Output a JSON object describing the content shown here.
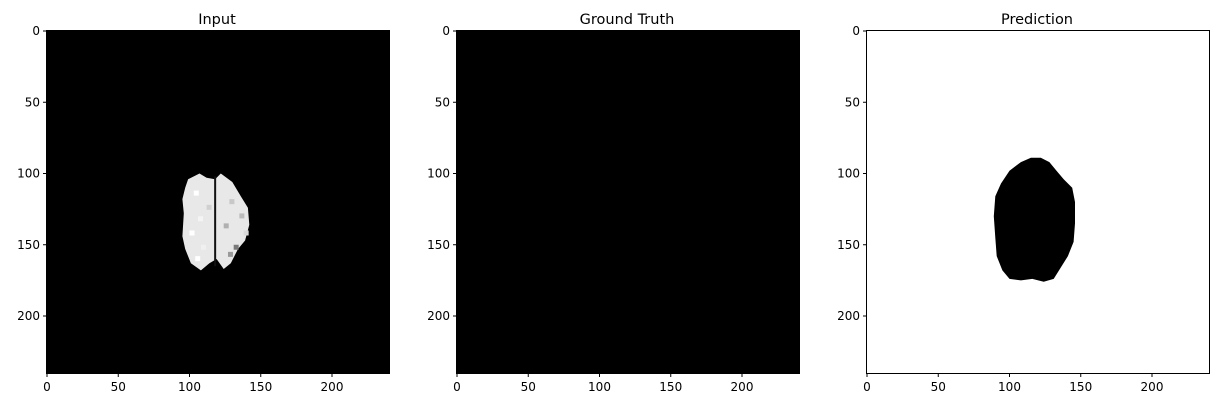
{
  "chart_data": [
    {
      "type": "heatmap",
      "title": "Input",
      "xlim": [
        0,
        240
      ],
      "ylim": [
        240,
        0
      ],
      "x_ticks": [
        0,
        50,
        100,
        150,
        200
      ],
      "y_ticks": [
        0,
        50,
        100,
        150,
        200
      ],
      "x_tick_labels": [
        "0",
        "50",
        "100",
        "150",
        "200"
      ],
      "y_tick_labels": [
        "0",
        "50",
        "100",
        "150",
        "200"
      ],
      "background": "#000000",
      "colormap": "gray",
      "content": {
        "region": "white-gray mottled blob",
        "x_range": [
          95,
          142
        ],
        "y_range": [
          100,
          168
        ],
        "color": "#e8e8e8",
        "outline": [
          [
            99,
            104
          ],
          [
            107,
            100
          ],
          [
            112,
            103
          ],
          [
            118,
            104
          ],
          [
            122,
            100
          ],
          [
            130,
            106
          ],
          [
            136,
            116
          ],
          [
            141,
            124
          ],
          [
            142,
            136
          ],
          [
            139,
            147
          ],
          [
            134,
            153
          ],
          [
            129,
            163
          ],
          [
            124,
            167
          ],
          [
            119,
            160
          ],
          [
            114,
            163
          ],
          [
            108,
            168
          ],
          [
            101,
            163
          ],
          [
            97,
            153
          ],
          [
            95,
            144
          ],
          [
            96,
            128
          ],
          [
            95,
            118
          ],
          [
            97,
            110
          ]
        ]
      }
    },
    {
      "type": "heatmap",
      "title": "Ground Truth",
      "xlim": [
        0,
        240
      ],
      "ylim": [
        240,
        0
      ],
      "x_ticks": [
        0,
        50,
        100,
        150,
        200
      ],
      "y_ticks": [
        0,
        50,
        100,
        150,
        200
      ],
      "x_tick_labels": [
        "0",
        "50",
        "100",
        "150",
        "200"
      ],
      "y_tick_labels": [
        "0",
        "50",
        "100",
        "150",
        "200"
      ],
      "background": "#000000",
      "colormap": "gray"
    },
    {
      "type": "heatmap",
      "title": "Prediction",
      "xlim": [
        0,
        240
      ],
      "ylim": [
        240,
        0
      ],
      "x_ticks": [
        0,
        50,
        100,
        150,
        200
      ],
      "y_ticks": [
        0,
        50,
        100,
        150,
        200
      ],
      "x_tick_labels": [
        "0",
        "50",
        "100",
        "150",
        "200"
      ],
      "y_tick_labels": [
        "0",
        "50",
        "100",
        "150",
        "200"
      ],
      "background": "#ffffff",
      "colormap": "gray",
      "content": {
        "region": "solid black blob",
        "color": "#000000",
        "x_range": [
          89,
          146
        ],
        "y_range": [
          89,
          176
        ],
        "outline": [
          [
            94,
            107
          ],
          [
            100,
            98
          ],
          [
            108,
            92
          ],
          [
            115,
            89
          ],
          [
            122,
            89
          ],
          [
            128,
            92
          ],
          [
            133,
            98
          ],
          [
            138,
            104
          ],
          [
            144,
            110
          ],
          [
            146,
            120
          ],
          [
            146,
            135
          ],
          [
            145,
            148
          ],
          [
            141,
            158
          ],
          [
            136,
            166
          ],
          [
            131,
            174
          ],
          [
            124,
            176
          ],
          [
            116,
            174
          ],
          [
            108,
            175
          ],
          [
            100,
            174
          ],
          [
            95,
            168
          ],
          [
            91,
            158
          ],
          [
            90,
            145
          ],
          [
            89,
            130
          ],
          [
            90,
            116
          ]
        ]
      }
    }
  ]
}
